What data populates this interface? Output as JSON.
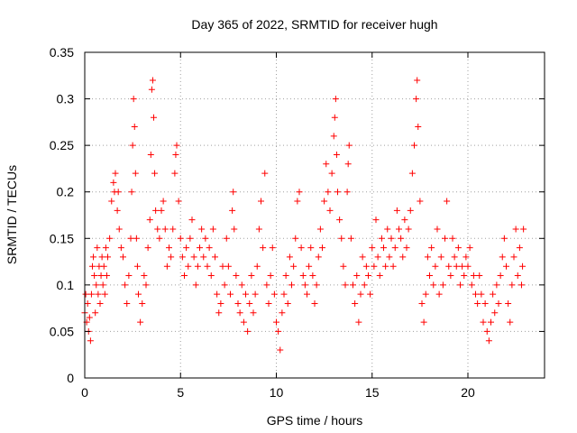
{
  "chart_data": {
    "type": "scatter",
    "title": "Day 365 of 2022, SRMTID for receiver hugh",
    "xlabel": "GPS time / hours",
    "ylabel": "SRMTID / TECUs",
    "xlim": [
      0,
      24
    ],
    "ylim": [
      0,
      0.35
    ],
    "xticks": [
      0,
      5,
      10,
      15,
      20
    ],
    "xtick_labels": [
      "0",
      "5",
      "10",
      "15",
      "20"
    ],
    "yticks": [
      0,
      0.05,
      0.1,
      0.15,
      0.2,
      0.25,
      0.3,
      0.35
    ],
    "ytick_labels": [
      "0",
      "0.05",
      "0.1",
      "0.15",
      "0.2",
      "0.25",
      "0.3",
      "0.35"
    ],
    "grid": true,
    "marker": "+",
    "color": "#ff0000",
    "series": [
      {
        "name": "SRMTID",
        "points": [
          [
            0.0,
            0.07
          ],
          [
            0.05,
            0.09
          ],
          [
            0.1,
            0.06
          ],
          [
            0.15,
            0.08
          ],
          [
            0.2,
            0.05
          ],
          [
            0.25,
            0.065
          ],
          [
            0.3,
            0.04
          ],
          [
            0.35,
            0.09
          ],
          [
            0.4,
            0.12
          ],
          [
            0.45,
            0.13
          ],
          [
            0.5,
            0.11
          ],
          [
            0.55,
            0.07
          ],
          [
            0.6,
            0.1
          ],
          [
            0.65,
            0.14
          ],
          [
            0.7,
            0.09
          ],
          [
            0.75,
            0.12
          ],
          [
            0.8,
            0.08
          ],
          [
            0.85,
            0.11
          ],
          [
            0.9,
            0.13
          ],
          [
            0.95,
            0.1
          ],
          [
            1.0,
            0.12
          ],
          [
            1.05,
            0.09
          ],
          [
            1.1,
            0.14
          ],
          [
            1.15,
            0.11
          ],
          [
            1.2,
            0.13
          ],
          [
            1.3,
            0.15
          ],
          [
            1.4,
            0.19
          ],
          [
            1.5,
            0.21
          ],
          [
            1.55,
            0.2
          ],
          [
            1.6,
            0.22
          ],
          [
            1.7,
            0.18
          ],
          [
            1.75,
            0.2
          ],
          [
            1.8,
            0.16
          ],
          [
            1.9,
            0.14
          ],
          [
            2.0,
            0.13
          ],
          [
            2.1,
            0.1
          ],
          [
            2.2,
            0.08
          ],
          [
            2.3,
            0.11
          ],
          [
            2.4,
            0.15
          ],
          [
            2.45,
            0.2
          ],
          [
            2.5,
            0.25
          ],
          [
            2.55,
            0.3
          ],
          [
            2.6,
            0.27
          ],
          [
            2.65,
            0.22
          ],
          [
            2.7,
            0.15
          ],
          [
            2.75,
            0.12
          ],
          [
            2.8,
            0.09
          ],
          [
            2.9,
            0.06
          ],
          [
            3.0,
            0.08
          ],
          [
            3.1,
            0.11
          ],
          [
            3.2,
            0.1
          ],
          [
            3.3,
            0.14
          ],
          [
            3.4,
            0.17
          ],
          [
            3.45,
            0.24
          ],
          [
            3.5,
            0.31
          ],
          [
            3.55,
            0.32
          ],
          [
            3.6,
            0.28
          ],
          [
            3.65,
            0.22
          ],
          [
            3.7,
            0.18
          ],
          [
            3.8,
            0.16
          ],
          [
            3.9,
            0.15
          ],
          [
            4.0,
            0.18
          ],
          [
            4.1,
            0.19
          ],
          [
            4.2,
            0.16
          ],
          [
            4.3,
            0.12
          ],
          [
            4.4,
            0.14
          ],
          [
            4.5,
            0.13
          ],
          [
            4.6,
            0.16
          ],
          [
            4.7,
            0.22
          ],
          [
            4.75,
            0.24
          ],
          [
            4.8,
            0.25
          ],
          [
            4.9,
            0.19
          ],
          [
            5.0,
            0.15
          ],
          [
            5.1,
            0.13
          ],
          [
            5.2,
            0.11
          ],
          [
            5.3,
            0.14
          ],
          [
            5.4,
            0.12
          ],
          [
            5.5,
            0.15
          ],
          [
            5.6,
            0.17
          ],
          [
            5.7,
            0.13
          ],
          [
            5.8,
            0.1
          ],
          [
            5.9,
            0.12
          ],
          [
            6.0,
            0.14
          ],
          [
            6.1,
            0.16
          ],
          [
            6.2,
            0.13
          ],
          [
            6.3,
            0.15
          ],
          [
            6.4,
            0.12
          ],
          [
            6.5,
            0.14
          ],
          [
            6.6,
            0.11
          ],
          [
            6.7,
            0.16
          ],
          [
            6.8,
            0.13
          ],
          [
            6.9,
            0.09
          ],
          [
            7.0,
            0.07
          ],
          [
            7.1,
            0.08
          ],
          [
            7.2,
            0.12
          ],
          [
            7.3,
            0.1
          ],
          [
            7.4,
            0.15
          ],
          [
            7.5,
            0.12
          ],
          [
            7.6,
            0.09
          ],
          [
            7.7,
            0.18
          ],
          [
            7.75,
            0.2
          ],
          [
            7.8,
            0.16
          ],
          [
            7.9,
            0.11
          ],
          [
            8.0,
            0.08
          ],
          [
            8.1,
            0.07
          ],
          [
            8.2,
            0.1
          ],
          [
            8.3,
            0.06
          ],
          [
            8.4,
            0.09
          ],
          [
            8.5,
            0.05
          ],
          [
            8.6,
            0.08
          ],
          [
            8.7,
            0.11
          ],
          [
            8.8,
            0.07
          ],
          [
            8.9,
            0.09
          ],
          [
            9.0,
            0.12
          ],
          [
            9.1,
            0.16
          ],
          [
            9.2,
            0.19
          ],
          [
            9.3,
            0.14
          ],
          [
            9.4,
            0.22
          ],
          [
            9.5,
            0.1
          ],
          [
            9.6,
            0.08
          ],
          [
            9.7,
            0.11
          ],
          [
            9.8,
            0.14
          ],
          [
            9.9,
            0.09
          ],
          [
            10.0,
            0.06
          ],
          [
            10.1,
            0.05
          ],
          [
            10.2,
            0.03
          ],
          [
            10.3,
            0.07
          ],
          [
            10.4,
            0.09
          ],
          [
            10.5,
            0.11
          ],
          [
            10.6,
            0.08
          ],
          [
            10.7,
            0.13
          ],
          [
            10.8,
            0.1
          ],
          [
            10.9,
            0.12
          ],
          [
            11.0,
            0.15
          ],
          [
            11.1,
            0.19
          ],
          [
            11.2,
            0.2
          ],
          [
            11.3,
            0.14
          ],
          [
            11.4,
            0.11
          ],
          [
            11.5,
            0.1
          ],
          [
            11.6,
            0.09
          ],
          [
            11.7,
            0.12
          ],
          [
            11.8,
            0.14
          ],
          [
            11.9,
            0.11
          ],
          [
            12.0,
            0.08
          ],
          [
            12.1,
            0.1
          ],
          [
            12.2,
            0.13
          ],
          [
            12.3,
            0.16
          ],
          [
            12.4,
            0.14
          ],
          [
            12.5,
            0.19
          ],
          [
            12.6,
            0.23
          ],
          [
            12.7,
            0.2
          ],
          [
            12.8,
            0.18
          ],
          [
            12.9,
            0.22
          ],
          [
            13.0,
            0.26
          ],
          [
            13.05,
            0.28
          ],
          [
            13.1,
            0.3
          ],
          [
            13.15,
            0.24
          ],
          [
            13.2,
            0.2
          ],
          [
            13.3,
            0.17
          ],
          [
            13.4,
            0.15
          ],
          [
            13.5,
            0.12
          ],
          [
            13.6,
            0.1
          ],
          [
            13.7,
            0.2
          ],
          [
            13.75,
            0.23
          ],
          [
            13.8,
            0.25
          ],
          [
            13.9,
            0.15
          ],
          [
            14.0,
            0.1
          ],
          [
            14.1,
            0.08
          ],
          [
            14.2,
            0.11
          ],
          [
            14.3,
            0.06
          ],
          [
            14.4,
            0.09
          ],
          [
            14.5,
            0.13
          ],
          [
            14.6,
            0.1
          ],
          [
            14.7,
            0.12
          ],
          [
            14.8,
            0.11
          ],
          [
            14.9,
            0.09
          ],
          [
            15.0,
            0.14
          ],
          [
            15.1,
            0.12
          ],
          [
            15.2,
            0.17
          ],
          [
            15.3,
            0.13
          ],
          [
            15.4,
            0.11
          ],
          [
            15.5,
            0.15
          ],
          [
            15.6,
            0.14
          ],
          [
            15.7,
            0.12
          ],
          [
            15.8,
            0.16
          ],
          [
            15.9,
            0.13
          ],
          [
            16.0,
            0.15
          ],
          [
            16.1,
            0.12
          ],
          [
            16.2,
            0.14
          ],
          [
            16.3,
            0.18
          ],
          [
            16.4,
            0.16
          ],
          [
            16.5,
            0.15
          ],
          [
            16.6,
            0.13
          ],
          [
            16.7,
            0.17
          ],
          [
            16.8,
            0.14
          ],
          [
            16.9,
            0.16
          ],
          [
            17.0,
            0.18
          ],
          [
            17.1,
            0.22
          ],
          [
            17.2,
            0.25
          ],
          [
            17.3,
            0.3
          ],
          [
            17.35,
            0.32
          ],
          [
            17.4,
            0.27
          ],
          [
            17.5,
            0.19
          ],
          [
            17.6,
            0.08
          ],
          [
            17.7,
            0.06
          ],
          [
            17.8,
            0.09
          ],
          [
            17.9,
            0.13
          ],
          [
            18.0,
            0.11
          ],
          [
            18.1,
            0.14
          ],
          [
            18.2,
            0.1
          ],
          [
            18.3,
            0.12
          ],
          [
            18.4,
            0.16
          ],
          [
            18.5,
            0.09
          ],
          [
            18.6,
            0.13
          ],
          [
            18.7,
            0.1
          ],
          [
            18.8,
            0.15
          ],
          [
            18.9,
            0.19
          ],
          [
            19.0,
            0.12
          ],
          [
            19.1,
            0.11
          ],
          [
            19.2,
            0.15
          ],
          [
            19.3,
            0.13
          ],
          [
            19.4,
            0.12
          ],
          [
            19.5,
            0.14
          ],
          [
            19.6,
            0.1
          ],
          [
            19.7,
            0.12
          ],
          [
            19.8,
            0.11
          ],
          [
            19.9,
            0.13
          ],
          [
            20.0,
            0.12
          ],
          [
            20.1,
            0.14
          ],
          [
            20.2,
            0.1
          ],
          [
            20.3,
            0.11
          ],
          [
            20.4,
            0.09
          ],
          [
            20.5,
            0.08
          ],
          [
            20.6,
            0.11
          ],
          [
            20.7,
            0.09
          ],
          [
            20.8,
            0.06
          ],
          [
            20.9,
            0.08
          ],
          [
            21.0,
            0.05
          ],
          [
            21.1,
            0.04
          ],
          [
            21.2,
            0.06
          ],
          [
            21.3,
            0.09
          ],
          [
            21.4,
            0.07
          ],
          [
            21.5,
            0.1
          ],
          [
            21.6,
            0.08
          ],
          [
            21.7,
            0.11
          ],
          [
            21.8,
            0.13
          ],
          [
            21.9,
            0.15
          ],
          [
            22.0,
            0.12
          ],
          [
            22.1,
            0.08
          ],
          [
            22.2,
            0.06
          ],
          [
            22.3,
            0.1
          ],
          [
            22.4,
            0.13
          ],
          [
            22.5,
            0.16
          ],
          [
            22.6,
            0.11
          ],
          [
            22.7,
            0.14
          ],
          [
            22.8,
            0.1
          ],
          [
            22.85,
            0.12
          ],
          [
            22.9,
            0.16
          ]
        ]
      }
    ]
  }
}
